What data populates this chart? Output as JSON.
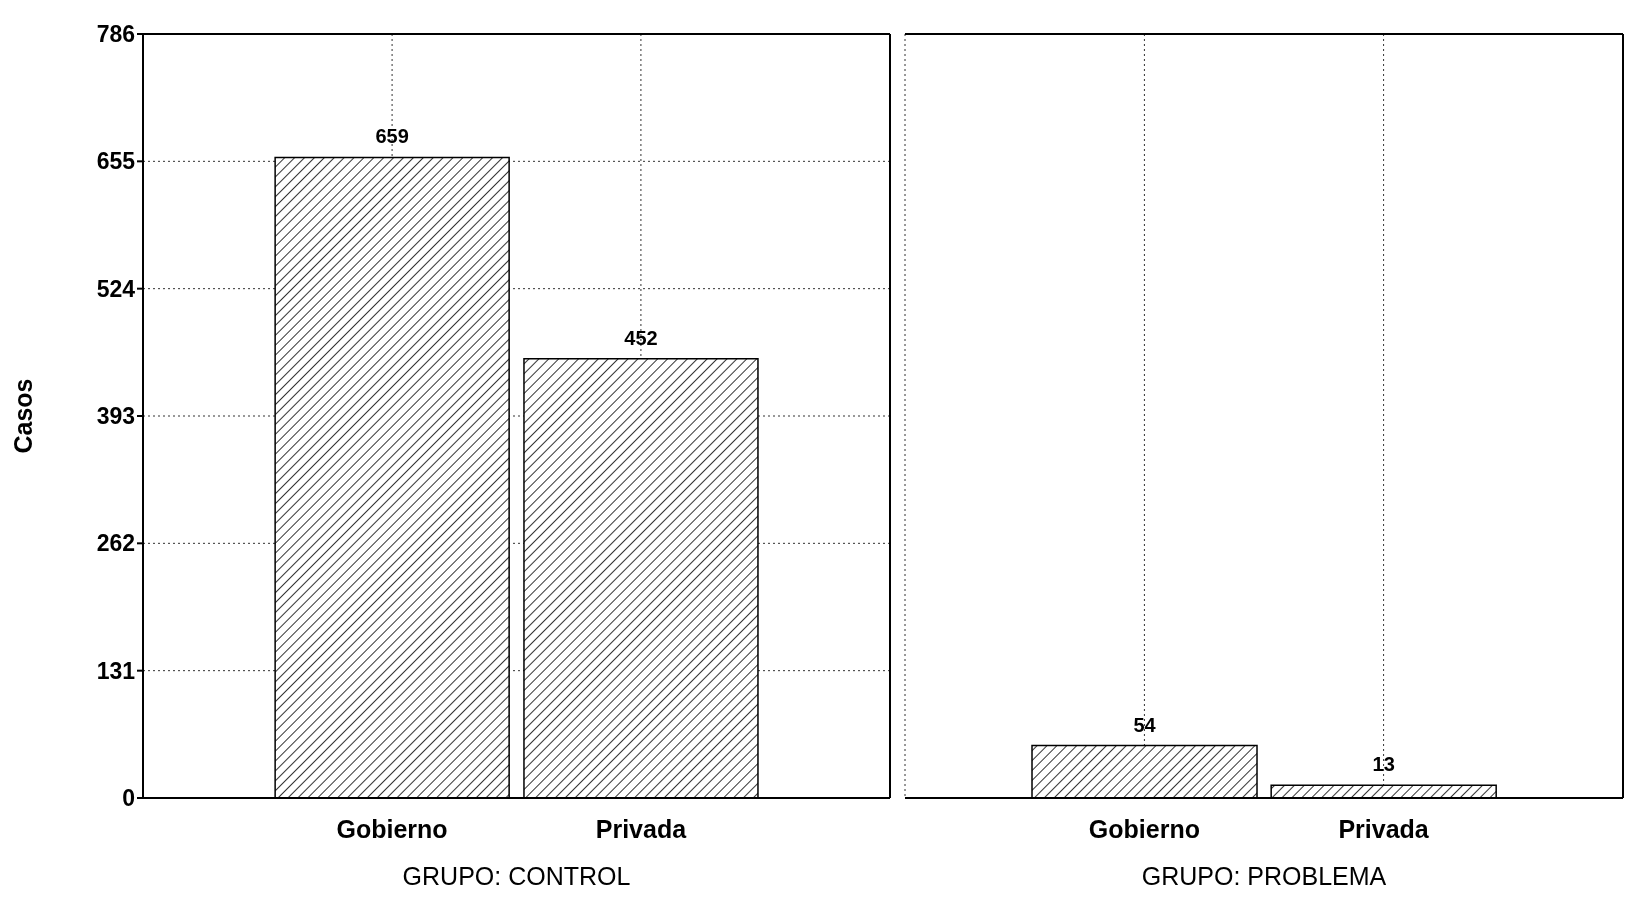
{
  "chart_data": [
    {
      "type": "bar",
      "categories": [
        "Gobierno",
        "Privada"
      ],
      "values": [
        659,
        452
      ],
      "color": "#000000",
      "ylim": [
        0,
        786
      ],
      "yticks": [
        0,
        131,
        262,
        393,
        524,
        655,
        786
      ],
      "ylabel": "Casos",
      "xlabel": "GRUPO: CONTROL",
      "data_labels": true,
      "grid": true
    },
    {
      "type": "bar",
      "categories": [
        "Gobierno",
        "Privada"
      ],
      "values": [
        54,
        13
      ],
      "color": "#000000",
      "ylim": [
        0,
        786
      ],
      "yticks": [
        0,
        131,
        262,
        393,
        524,
        655,
        786
      ],
      "xlabel": "GRUPO: PROBLEMA",
      "data_labels": true,
      "grid": true,
      "tick_labels": "x"
    }
  ]
}
